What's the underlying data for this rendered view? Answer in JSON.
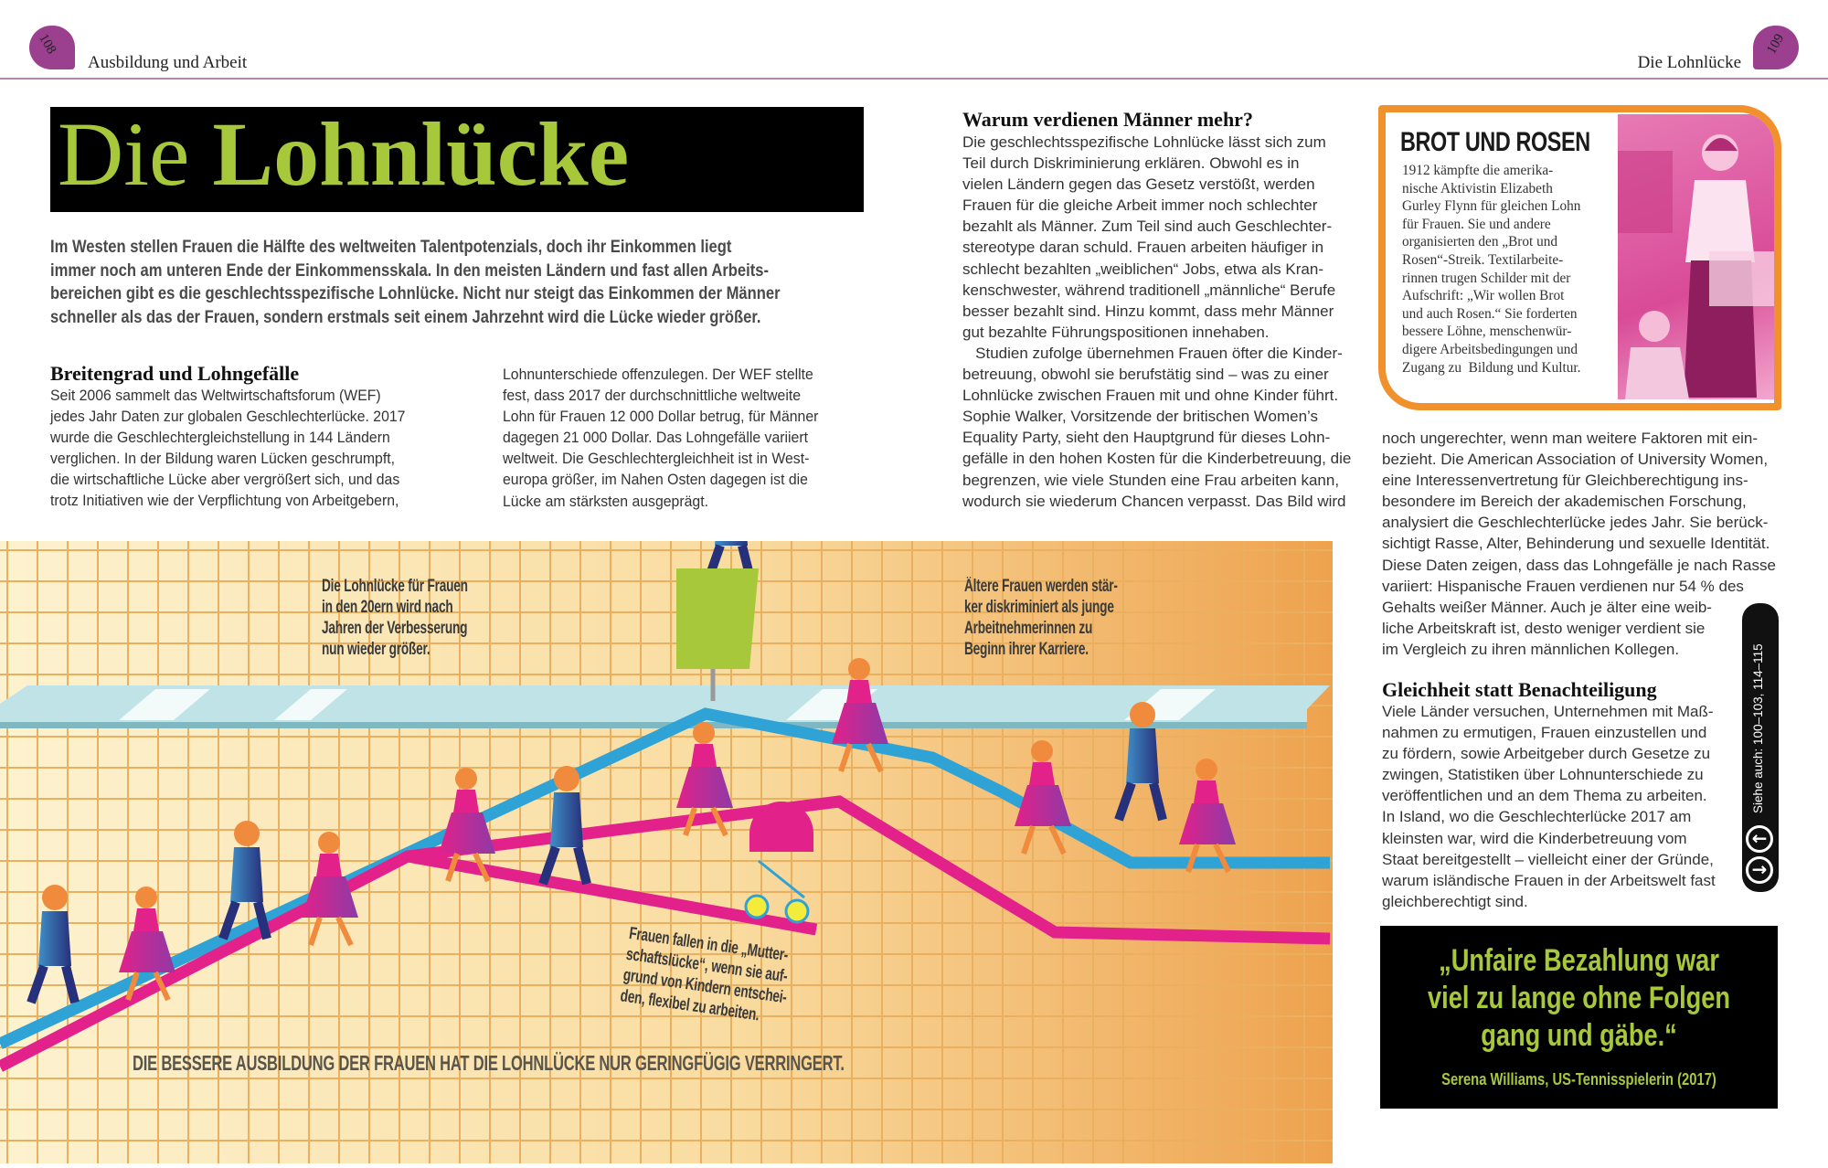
{
  "header": {
    "left_page": "108",
    "left_section": "Ausbildung und Arbeit",
    "right_page": "109",
    "right_section": "Die Lohnlücke"
  },
  "title": {
    "light": "Die",
    "bold": "Lohnlücke"
  },
  "intro": [
    "Im Westen stellen Frauen die Hälfte des weltweiten Talentpotenzials, doch ihr Einkommen liegt",
    "immer noch am unteren Ende der Einkommensskala. In den meisten Ländern und fast allen Arbeits-",
    "bereichen gibt es die geschlechtsspezifische Lohnlücke. Nicht nur steigt das Einkommen der Männer",
    "schneller als das der Frauen, sondern erstmals seit einem Jahrzehnt wird die Lücke wieder größer."
  ],
  "section1": {
    "heading": "Breitengrad und Lohngefälle",
    "col1": [
      "Seit 2006 sammelt das Weltwirtschaftsforum (WEF)",
      "jedes Jahr Daten zur globalen Geschlechterlücke. 2017",
      "wurde die Geschlechtergleichstellung in 144 Ländern",
      "verglichen. In der Bildung waren Lücken geschrumpft,",
      "die wirtschaftliche Lücke aber vergrößert sich, und das",
      "trotz Initiativen wie der Verpflichtung von Arbeitgebern,"
    ],
    "col2": [
      "Lohnunterschiede offenzulegen. Der WEF stellte",
      "fest, dass 2017 der durchschnittliche weltweite",
      "Lohn für Frauen 12 000 Dollar betrug, für Männer",
      "dagegen 21 000 Dollar. Das Lohngefälle variiert",
      "weltweit. Die Geschlechtergleichheit ist in West-",
      "europa größer, im Nahen Osten dagegen ist die",
      "Lücke am stärksten ausgeprägt."
    ]
  },
  "section2": {
    "heading": "Warum verdienen Männer mehr?",
    "lines": [
      "Die geschlechtsspezifische Lohnlücke lässt sich zum",
      "Teil durch Diskriminierung erklären. Obwohl es in",
      "vielen Ländern gegen das Gesetz verstößt, werden",
      "Frauen für die gleiche Arbeit immer noch schlechter",
      "bezahlt als Männer. Zum Teil sind auch Geschlechter-",
      "stereotype daran schuld. Frauen arbeiten häufiger in",
      "schlecht bezahlten „weiblichen“ Jobs, etwa als Kran-",
      "kenschwester, während traditionell „männliche“ Berufe",
      "besser bezahlt sind. Hinzu kommt, dass mehr Männer",
      "gut bezahlte Führungspositionen innehaben.",
      "   Studien zufolge übernehmen Frauen öfter die Kinder-",
      "betreuung, obwohl sie berufstätig sind – was zu einer",
      "Lohnlücke zwischen Frauen mit und ohne Kinder führt.",
      "Sophie Walker, Vorsitzende der britischen Women’s",
      "Equality Party, sieht den Hauptgrund für dieses Lohn-",
      "gefälle in den hohen Kosten für die Kinderbetreuung, die",
      "begrenzen, wie viele Stunden eine Frau arbeiten kann,",
      "wodurch sie wiederum Chancen verpasst. Das Bild wird"
    ]
  },
  "sidebar": {
    "heading": "BROT UND ROSEN",
    "lines": [
      "1912 kämpfte die amerika-",
      "nische Aktivistin Elizabeth",
      "Gurley Flynn für gleichen Lohn",
      "für Frauen. Sie und andere",
      "organisierten den „Brot und",
      "Rosen“-Streik. Textilarbeite-",
      "rinnen trugen Schilder mit der",
      "Aufschrift: „Wir wollen Brot",
      "und auch Rosen.“ Sie forderten",
      "bessere Löhne, menschenwür-",
      "digere Arbeitsbedingungen und",
      "Zugang zu  Bildung und Kultur."
    ]
  },
  "right": {
    "lines": [
      "noch ungerechter, wenn man weitere Faktoren mit ein-",
      "bezieht. Die American Association of University Women,",
      "eine Interessenvertretung für Gleichberechtigung ins-",
      "besondere im Bereich der akademischen Forschung,",
      "analysiert die Geschlechterlücke jedes Jahr. Sie berück-",
      "sichtigt Rasse, Alter, Behinderung und sexuelle Identität.",
      "Diese Daten zeigen, dass das Lohngefälle je nach Rasse",
      "variiert: Hispanische Frauen verdienen nur 54 % des",
      "Gehalts weißer Männer. Auch je älter eine weib-",
      "liche Arbeitskraft ist, desto weniger verdient sie",
      "im Vergleich zu ihren männlichen Kollegen."
    ],
    "heading": "Gleichheit statt Benachteiligung",
    "lines2": [
      "Viele Länder versuchen, Unternehmen mit Maß-",
      "nahmen zu ermutigen, Frauen einzustellen und",
      "zu fördern, sowie Arbeitgeber durch Gesetze zu",
      "zwingen, Statistiken über Lohnunterschiede zu",
      "veröffentlichen und an dem Thema zu arbeiten.",
      "In Island, wo die Geschlechterlücke 2017 am",
      "kleinsten war, wird die Kinderbetreuung vom",
      "Staat bereitgestellt – vielleicht einer der Gründe,",
      "warum isländische Frauen in der Arbeitswelt fast",
      "gleichberechtigt sind."
    ]
  },
  "see_also": {
    "label": "Siehe auch: 100–103, 114–115",
    "back_icon": "arrow-left-icon",
    "forward_icon": "arrow-right-icon"
  },
  "quote": {
    "lines": [
      "„Unfaire Bezahlung war",
      "viel zu lange ohne Folgen",
      "gang und gäbe.“"
    ],
    "attribution": "Serena Williams, US-Tennisspielerin (2017)"
  },
  "illustration": {
    "label_20s": [
      "Die Lohnlücke für Frauen",
      "in den 20ern wird nach",
      "Jahren der Verbesserung",
      "nun wieder größer."
    ],
    "label_older": [
      "Ältere Frauen werden stär-",
      "ker diskriminiert als junge",
      "Arbeitnehmerinnen zu",
      "Beginn ihrer Karriere."
    ],
    "label_mother": [
      "Frauen fallen in die „Mutter-",
      "schaftslücke“, wenn sie auf-",
      "grund von Kindern entschei-",
      "den, flexibel zu arbeiten."
    ],
    "label_bottom": "DIE BESSERE AUSBILDUNG DER FRAUEN HAT DIE LOHNLÜCKE NUR GERINGFÜGIG VERRINGERT."
  },
  "colors": {
    "title_green": "#a8c83c",
    "badge_purple": "#9b3f8f",
    "sidebar_orange": "#f0912c",
    "women_line_pink": "#e2218a",
    "men_line_blue": "#2fa3d6",
    "glass_ceiling": "#bfe3e6"
  }
}
